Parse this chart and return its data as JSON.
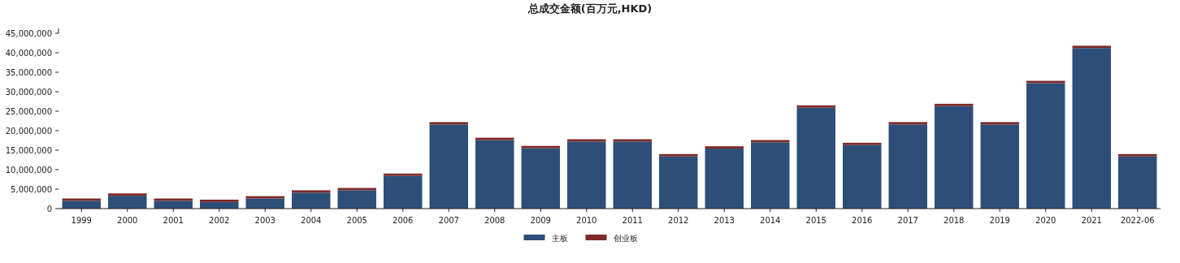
{
  "chart_data": {
    "type": "bar",
    "title": "总成交金额(百万元,HKD)",
    "stacked": true,
    "legend": "bottom",
    "categories": [
      "1999",
      "2000",
      "2001",
      "2002",
      "2003",
      "2004",
      "2005",
      "2006",
      "2007",
      "2008",
      "2009",
      "2010",
      "2011",
      "2012",
      "2013",
      "2014",
      "2015",
      "2016",
      "2017",
      "2018",
      "2019",
      "2020",
      "2021",
      "2022-06"
    ],
    "series": [
      {
        "name": "主板",
        "color": "#2d4e78",
        "values": [
          2000000,
          3300000,
          2000000,
          1700000,
          2600000,
          4100000,
          4700000,
          8400000,
          21600000,
          17600000,
          15500000,
          17200000,
          17200000,
          13400000,
          15400000,
          17000000,
          25900000,
          16300000,
          21600000,
          26300000,
          21600000,
          32200000,
          41200000,
          13400000
        ]
      },
      {
        "name": "创业板",
        "color": "#7d2a2a",
        "values": [
          600000,
          600000,
          600000,
          600000,
          600000,
          600000,
          600000,
          600000,
          600000,
          600000,
          600000,
          600000,
          600000,
          600000,
          600000,
          600000,
          600000,
          600000,
          600000,
          600000,
          600000,
          600000,
          600000,
          600000
        ]
      }
    ],
    "ylim": [
      0,
      45000000
    ],
    "yticks": [
      {
        "value": 0,
        "label": "0"
      },
      {
        "value": 5000000,
        "label": "5,000,000"
      },
      {
        "value": 10000000,
        "label": "10,000,000"
      },
      {
        "value": 15000000,
        "label": "15,000,000"
      },
      {
        "value": 20000000,
        "label": "20,000,000"
      },
      {
        "value": 25000000,
        "label": "25,000,000"
      },
      {
        "value": 30000000,
        "label": "30,000,000"
      },
      {
        "value": 35000000,
        "label": "35,000,000"
      },
      {
        "value": 40000000,
        "label": "40,000,000"
      },
      {
        "value": 45000000,
        "label": "45,000,000"
      }
    ],
    "grid": false
  }
}
